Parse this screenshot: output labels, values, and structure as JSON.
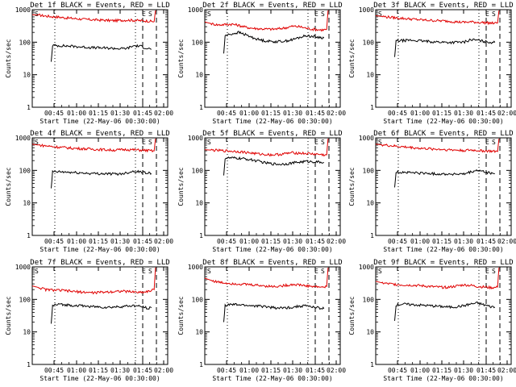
{
  "figure": {
    "type": "multi-panel time series (log y)",
    "panel_count": 9
  },
  "chart_data": [
    {
      "type": "line",
      "title": "Det 1f BLACK = Events, RED = LLD",
      "xlabel": "Start Time (22-May-06 00:30:00)",
      "ylabel": "Counts/sec",
      "y_scale": "log",
      "ylim": [
        1,
        1000
      ],
      "xlim": [
        0,
        100
      ],
      "x_tick_labels": [
        "00:45",
        "01:00",
        "01:15",
        "01:30",
        "01:45",
        "02:00"
      ],
      "y_tick_labels": [
        "1",
        "10",
        "100",
        "1000"
      ],
      "markers": [
        "S",
        "E",
        "S"
      ],
      "series": [
        {
          "name": "LLD",
          "color": "#e00000",
          "x": [
            0,
            5,
            10,
            15,
            20,
            25,
            30,
            35,
            40,
            45,
            50,
            55,
            60,
            65,
            70,
            75,
            80,
            85,
            88,
            90,
            91
          ],
          "y": [
            700,
            680,
            640,
            610,
            590,
            560,
            540,
            520,
            500,
            490,
            480,
            470,
            460,
            470,
            480,
            470,
            460,
            450,
            440,
            430,
            950
          ]
        },
        {
          "name": "Events",
          "color": "#000000",
          "x": [
            14,
            15,
            20,
            25,
            30,
            35,
            40,
            45,
            50,
            55,
            60,
            65,
            70,
            75,
            80,
            85,
            88
          ],
          "y": [
            25,
            80,
            78,
            77,
            75,
            72,
            70,
            68,
            67,
            66,
            65,
            63,
            65,
            78,
            75,
            65,
            60
          ]
        }
      ]
    },
    {
      "type": "line",
      "title": "Det 2f BLACK = Events, RED = LLD",
      "xlabel": "Start Time (22-May-06 00:30:00)",
      "ylabel": "Counts/sec",
      "y_scale": "log",
      "ylim": [
        1,
        1000
      ],
      "xlim": [
        0,
        100
      ],
      "x_tick_labels": [
        "00:45",
        "01:00",
        "01:15",
        "01:30",
        "01:45",
        "02:00"
      ],
      "y_tick_labels": [
        "1",
        "10",
        "100",
        "1000"
      ],
      "markers": [
        "S",
        "E",
        "S"
      ],
      "series": [
        {
          "name": "LLD",
          "color": "#e00000",
          "x": [
            0,
            5,
            10,
            15,
            20,
            25,
            30,
            35,
            40,
            45,
            50,
            55,
            60,
            65,
            70,
            75,
            80,
            85,
            88,
            90,
            91
          ],
          "y": [
            420,
            370,
            340,
            350,
            360,
            330,
            290,
            270,
            260,
            255,
            250,
            260,
            280,
            310,
            300,
            270,
            250,
            240,
            240,
            250,
            950
          ]
        },
        {
          "name": "Events",
          "color": "#000000",
          "x": [
            14,
            15,
            20,
            25,
            30,
            35,
            40,
            45,
            50,
            55,
            60,
            65,
            70,
            75,
            80,
            85,
            88
          ],
          "y": [
            45,
            160,
            180,
            200,
            170,
            140,
            120,
            110,
            105,
            105,
            110,
            120,
            140,
            160,
            150,
            140,
            135
          ]
        }
      ]
    },
    {
      "type": "line",
      "title": "Det 3f BLACK = Events, RED = LLD",
      "xlabel": "Start Time (22-May-06 00:30:00)",
      "ylabel": "Counts/sec",
      "y_scale": "log",
      "ylim": [
        1,
        1000
      ],
      "xlim": [
        0,
        100
      ],
      "x_tick_labels": [
        "00:45",
        "01:00",
        "01:15",
        "01:30",
        "01:45",
        "02:00"
      ],
      "y_tick_labels": [
        "1",
        "10",
        "100",
        "1000"
      ],
      "markers": [
        "S",
        "E",
        "S"
      ],
      "series": [
        {
          "name": "LLD",
          "color": "#e00000",
          "x": [
            0,
            5,
            10,
            15,
            20,
            25,
            30,
            35,
            40,
            45,
            50,
            55,
            60,
            65,
            70,
            75,
            80,
            85,
            88,
            90,
            91
          ],
          "y": [
            650,
            620,
            590,
            560,
            540,
            520,
            500,
            480,
            470,
            460,
            450,
            440,
            420,
            410,
            420,
            410,
            400,
            390,
            380,
            390,
            950
          ]
        },
        {
          "name": "Events",
          "color": "#000000",
          "x": [
            14,
            15,
            20,
            25,
            30,
            35,
            40,
            45,
            50,
            55,
            60,
            65,
            70,
            75,
            80,
            85,
            88
          ],
          "y": [
            35,
            110,
            112,
            115,
            112,
            108,
            105,
            102,
            100,
            98,
            100,
            100,
            120,
            115,
            105,
            100,
            98
          ]
        }
      ]
    },
    {
      "type": "line",
      "title": "Det 4f BLACK = Events, RED = LLD",
      "xlabel": "Start Time (22-May-06 00:30:00)",
      "ylabel": "Counts/sec",
      "y_scale": "log",
      "ylim": [
        1,
        1000
      ],
      "xlim": [
        0,
        100
      ],
      "x_tick_labels": [
        "00:45",
        "01:00",
        "01:15",
        "01:30",
        "01:45",
        "02:00"
      ],
      "y_tick_labels": [
        "1",
        "10",
        "100",
        "1000"
      ],
      "markers": [
        "S",
        "E",
        "S"
      ],
      "series": [
        {
          "name": "LLD",
          "color": "#e00000",
          "x": [
            0,
            5,
            10,
            15,
            20,
            25,
            30,
            35,
            40,
            45,
            50,
            55,
            60,
            65,
            70,
            75,
            80,
            85,
            88,
            90,
            91
          ],
          "y": [
            640,
            600,
            570,
            540,
            520,
            500,
            480,
            470,
            460,
            450,
            440,
            430,
            420,
            430,
            440,
            430,
            420,
            410,
            400,
            400,
            950
          ]
        },
        {
          "name": "Events",
          "color": "#000000",
          "x": [
            14,
            15,
            20,
            25,
            30,
            35,
            40,
            45,
            50,
            55,
            60,
            65,
            70,
            75,
            80,
            85,
            88
          ],
          "y": [
            28,
            90,
            90,
            88,
            86,
            84,
            82,
            80,
            80,
            79,
            78,
            78,
            85,
            95,
            90,
            85,
            80
          ]
        }
      ]
    },
    {
      "type": "line",
      "title": "Det 5f BLACK = Events, RED = LLD",
      "xlabel": "Start Time (22-May-06 00:30:00)",
      "ylabel": "Counts/sec",
      "y_scale": "log",
      "ylim": [
        1,
        1000
      ],
      "xlim": [
        0,
        100
      ],
      "x_tick_labels": [
        "00:45",
        "01:00",
        "01:15",
        "01:30",
        "01:45",
        "02:00"
      ],
      "y_tick_labels": [
        "1",
        "10",
        "100",
        "1000"
      ],
      "markers": [
        "S",
        "E",
        "S"
      ],
      "series": [
        {
          "name": "LLD",
          "color": "#e00000",
          "x": [
            0,
            5,
            10,
            15,
            20,
            25,
            30,
            35,
            40,
            45,
            50,
            55,
            60,
            65,
            70,
            75,
            80,
            85,
            88,
            90,
            91
          ],
          "y": [
            430,
            420,
            410,
            400,
            390,
            380,
            360,
            340,
            320,
            310,
            300,
            310,
            330,
            350,
            340,
            330,
            320,
            310,
            300,
            300,
            950
          ]
        },
        {
          "name": "Events",
          "color": "#000000",
          "x": [
            14,
            15,
            20,
            25,
            30,
            35,
            40,
            45,
            50,
            55,
            60,
            65,
            70,
            75,
            80,
            85,
            88
          ],
          "y": [
            70,
            240,
            240,
            235,
            225,
            210,
            190,
            170,
            160,
            155,
            160,
            170,
            180,
            190,
            185,
            180,
            175
          ]
        }
      ]
    },
    {
      "type": "line",
      "title": "Det 6f BLACK = Events, RED = LLD",
      "xlabel": "Start Time (22-May-06 00:30:00)",
      "ylabel": "Counts/sec",
      "y_scale": "log",
      "ylim": [
        1,
        1000
      ],
      "xlim": [
        0,
        100
      ],
      "x_tick_labels": [
        "00:45",
        "01:00",
        "01:15",
        "01:30",
        "01:45",
        "02:00"
      ],
      "y_tick_labels": [
        "1",
        "10",
        "100",
        "1000"
      ],
      "markers": [
        "S",
        "E",
        "S"
      ],
      "series": [
        {
          "name": "LLD",
          "color": "#e00000",
          "x": [
            0,
            5,
            10,
            15,
            20,
            25,
            30,
            35,
            40,
            45,
            50,
            55,
            60,
            65,
            70,
            75,
            80,
            85,
            88,
            90,
            91
          ],
          "y": [
            640,
            610,
            580,
            550,
            530,
            510,
            490,
            470,
            460,
            450,
            440,
            430,
            420,
            410,
            420,
            410,
            400,
            390,
            380,
            380,
            950
          ]
        },
        {
          "name": "Events",
          "color": "#000000",
          "x": [
            14,
            15,
            20,
            25,
            30,
            35,
            40,
            45,
            50,
            55,
            60,
            65,
            70,
            75,
            80,
            85,
            88
          ],
          "y": [
            30,
            88,
            88,
            86,
            84,
            82,
            80,
            78,
            78,
            77,
            77,
            76,
            88,
            100,
            90,
            82,
            78
          ]
        }
      ]
    },
    {
      "type": "line",
      "title": "Det 7f BLACK = Events, RED = LLD",
      "xlabel": "Start Time (22-May-06 00:30:00)",
      "ylabel": "Counts/sec",
      "y_scale": "log",
      "ylim": [
        1,
        1000
      ],
      "xlim": [
        0,
        100
      ],
      "x_tick_labels": [
        "00:45",
        "01:00",
        "01:15",
        "01:30",
        "01:45",
        "02:00"
      ],
      "y_tick_labels": [
        "1",
        "10",
        "100",
        "1000"
      ],
      "markers": [
        "S",
        "E",
        "S"
      ],
      "series": [
        {
          "name": "LLD",
          "color": "#e00000",
          "x": [
            0,
            5,
            10,
            15,
            20,
            25,
            30,
            35,
            40,
            45,
            50,
            55,
            60,
            65,
            70,
            75,
            80,
            85,
            88,
            90,
            91
          ],
          "y": [
            260,
            230,
            200,
            195,
            190,
            185,
            175,
            170,
            165,
            160,
            165,
            170,
            175,
            180,
            175,
            170,
            165,
            175,
            190,
            200,
            950
          ]
        },
        {
          "name": "Events",
          "color": "#000000",
          "x": [
            14,
            15,
            20,
            25,
            30,
            35,
            40,
            45,
            50,
            55,
            60,
            65,
            70,
            75,
            80,
            85,
            88
          ],
          "y": [
            18,
            65,
            70,
            68,
            66,
            64,
            62,
            60,
            58,
            57,
            58,
            60,
            62,
            64,
            60,
            55,
            55
          ]
        }
      ]
    },
    {
      "type": "line",
      "title": "Det 8f BLACK = Events, RED = LLD",
      "xlabel": "Start Time (22-May-06 00:30:00)",
      "ylabel": "Counts/sec",
      "y_scale": "log",
      "ylim": [
        1,
        1000
      ],
      "xlim": [
        0,
        100
      ],
      "x_tick_labels": [
        "00:45",
        "01:00",
        "01:15",
        "01:30",
        "01:45",
        "02:00"
      ],
      "y_tick_labels": [
        "1",
        "10",
        "100",
        "1000"
      ],
      "markers": [
        "S",
        "E",
        "S"
      ],
      "series": [
        {
          "name": "LLD",
          "color": "#e00000",
          "x": [
            0,
            5,
            10,
            15,
            20,
            25,
            30,
            35,
            40,
            45,
            50,
            55,
            60,
            65,
            70,
            75,
            80,
            85,
            88,
            90,
            91
          ],
          "y": [
            450,
            380,
            340,
            320,
            310,
            300,
            290,
            280,
            270,
            260,
            250,
            255,
            270,
            290,
            280,
            260,
            250,
            240,
            240,
            250,
            950
          ]
        },
        {
          "name": "Events",
          "color": "#000000",
          "x": [
            14,
            15,
            20,
            25,
            30,
            35,
            40,
            45,
            50,
            55,
            60,
            65,
            70,
            75,
            80,
            85,
            88
          ],
          "y": [
            20,
            65,
            70,
            68,
            66,
            64,
            62,
            60,
            56,
            54,
            55,
            58,
            62,
            64,
            58,
            54,
            52
          ]
        }
      ]
    },
    {
      "type": "line",
      "title": "Det 9f BLACK = Events, RED = LLD",
      "xlabel": "Start Time (22-May-06 00:30:00)",
      "ylabel": "Counts/sec",
      "y_scale": "log",
      "ylim": [
        1,
        1000
      ],
      "xlim": [
        0,
        100
      ],
      "x_tick_labels": [
        "00:45",
        "01:00",
        "01:15",
        "01:30",
        "01:45",
        "02:00"
      ],
      "y_tick_labels": [
        "1",
        "10",
        "100",
        "1000"
      ],
      "markers": [
        "S",
        "E",
        "S"
      ],
      "series": [
        {
          "name": "LLD",
          "color": "#e00000",
          "x": [
            0,
            5,
            10,
            15,
            20,
            25,
            30,
            35,
            40,
            45,
            50,
            55,
            60,
            65,
            70,
            75,
            80,
            85,
            88,
            90,
            91
          ],
          "y": [
            360,
            320,
            300,
            290,
            280,
            275,
            270,
            260,
            250,
            240,
            235,
            240,
            260,
            280,
            270,
            250,
            240,
            230,
            230,
            240,
            950
          ]
        },
        {
          "name": "Events",
          "color": "#000000",
          "x": [
            14,
            15,
            20,
            25,
            30,
            35,
            40,
            45,
            50,
            55,
            60,
            65,
            70,
            75,
            80,
            85,
            88
          ],
          "y": [
            22,
            68,
            72,
            70,
            68,
            66,
            64,
            62,
            60,
            58,
            60,
            64,
            72,
            78,
            68,
            60,
            58
          ]
        }
      ]
    }
  ]
}
